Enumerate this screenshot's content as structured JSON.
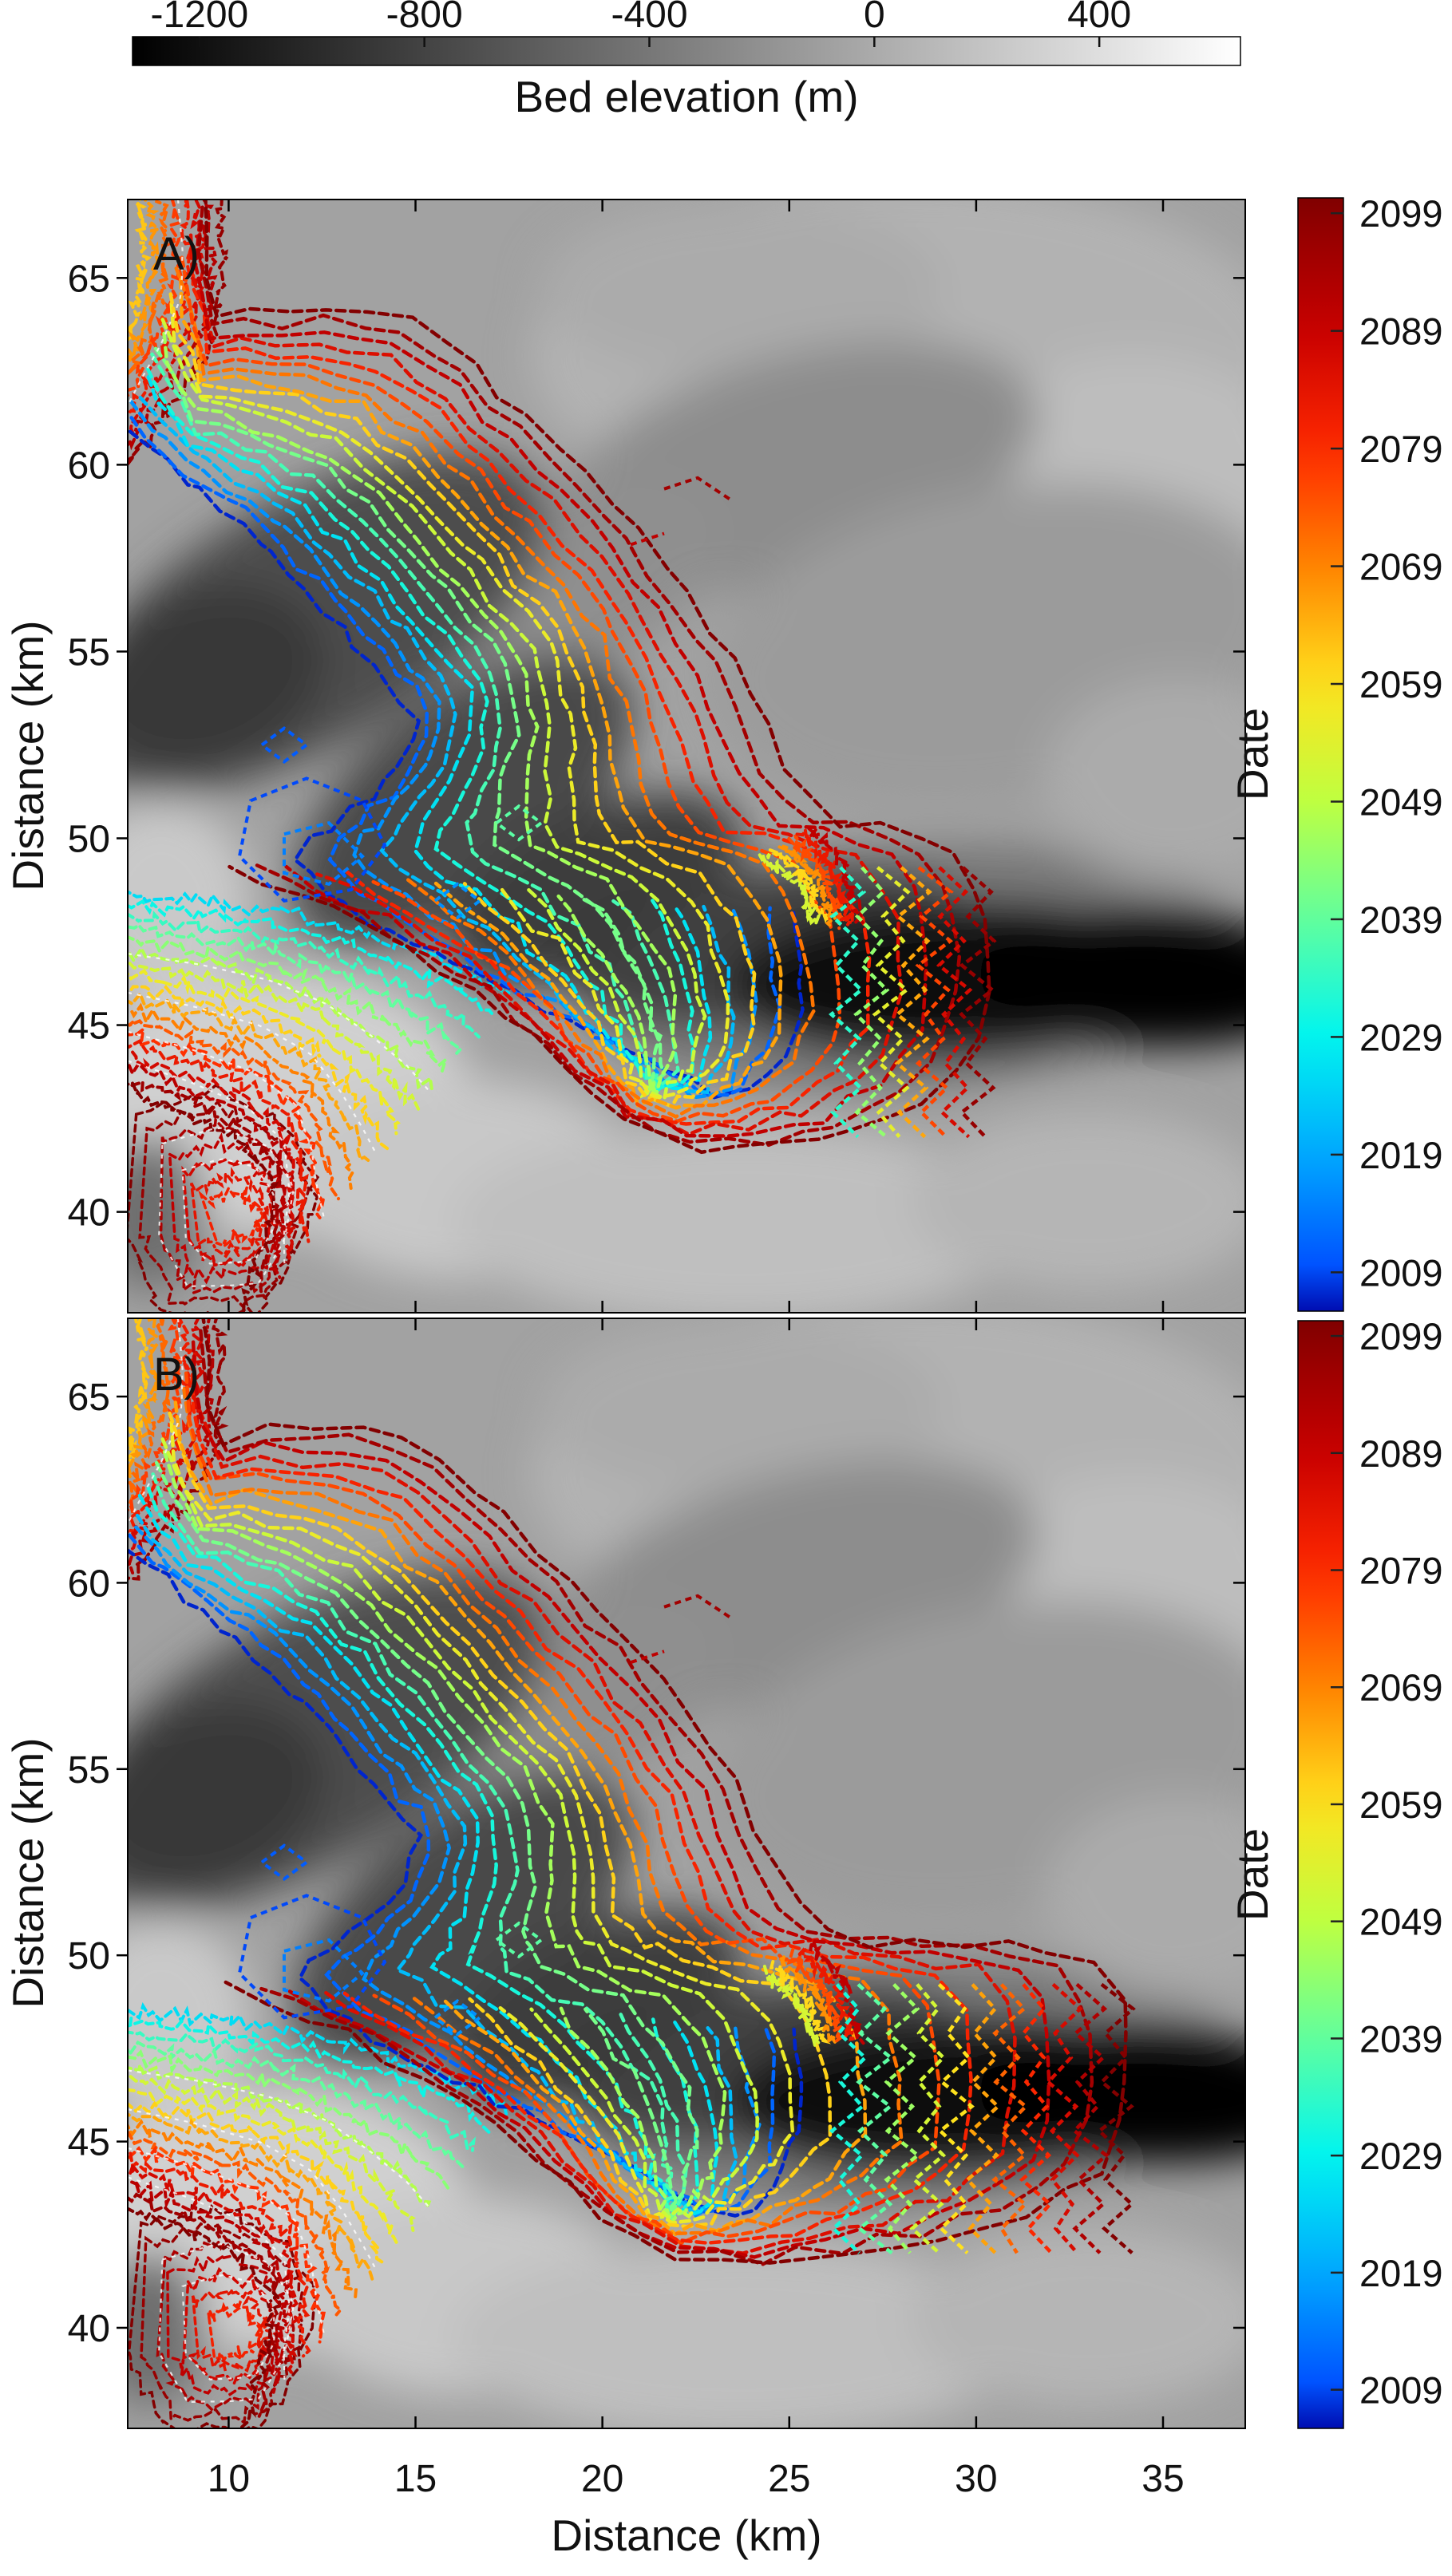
{
  "figure": {
    "background": "#ffffff"
  },
  "chart_data": {
    "type": "heatmap",
    "title": "",
    "description": "Two map panels (A, B) of modeled glacier terminus/margin contours for dates 2009-2099 (jet colormap) overlaid on a grayscale bed-elevation map; deep trough (dark, < -1000 m) runs along distance-y 45-50 km toward the east edge.",
    "x_label": "Distance (km)",
    "y_label": "Distance (km)",
    "x_range": [
      7.3,
      37.2
    ],
    "y_range": [
      37.3,
      67.1
    ],
    "x_ticks": [
      10,
      15,
      20,
      25,
      30,
      35
    ],
    "y_ticks": [
      65,
      60,
      55,
      50,
      45,
      40
    ],
    "grid": false,
    "bed_colorbar": {
      "label": "Bed elevation (m)",
      "colormap": "gray",
      "range": [
        -1319,
        651
      ],
      "ticks": [
        -1200,
        -800,
        -400,
        0,
        400
      ],
      "orientation": "horizontal",
      "position": "top"
    },
    "date_colorbar": {
      "label": "Date",
      "colormap": "jet",
      "tick_range": [
        2005.7,
        2100.3
      ],
      "ticks": [
        2099,
        2089,
        2079,
        2069,
        2059,
        2049,
        2039,
        2029,
        2019,
        2009
      ],
      "orientation": "vertical",
      "position": "right",
      "gradient_stops": [
        [
          2005,
          "#0000A0"
        ],
        [
          2009,
          "#004DFF"
        ],
        [
          2019,
          "#00A8FF"
        ],
        [
          2029,
          "#00F5F0"
        ],
        [
          2039,
          "#61FF9E"
        ],
        [
          2049,
          "#BFFF40"
        ],
        [
          2059,
          "#FFE21D"
        ],
        [
          2069,
          "#FF8400"
        ],
        [
          2079,
          "#FF2900"
        ],
        [
          2089,
          "#C80000"
        ],
        [
          2099,
          "#8B0000"
        ],
        [
          2101,
          "#7A0000"
        ]
      ]
    },
    "contour_year_start": 2005,
    "contour_year_end": 2100,
    "background_blobs": [
      {
        "cx": 70,
        "cy": 14,
        "rx": 34,
        "ry": 16,
        "rot": 0,
        "fill": "#b2b2b2",
        "op": 1
      },
      {
        "cx": 90,
        "cy": 26,
        "rx": 16,
        "ry": 12,
        "rot": 0,
        "fill": "#bdbdbd",
        "op": 1
      },
      {
        "cx": 55,
        "cy": 8,
        "rx": 18,
        "ry": 8,
        "rot": 0,
        "fill": "#ababab",
        "op": 1
      },
      {
        "cx": 60,
        "cy": 24,
        "rx": 22,
        "ry": 10,
        "rot": -15,
        "fill": "#8d8d8d",
        "op": 1
      },
      {
        "cx": 78,
        "cy": 40,
        "rx": 26,
        "ry": 14,
        "rot": -10,
        "fill": "#9b9b9b",
        "op": 1
      },
      {
        "cx": 40,
        "cy": 34,
        "rx": 14,
        "ry": 8,
        "rot": -25,
        "fill": "#8f8f8f",
        "op": 1
      },
      {
        "cx": 16,
        "cy": 38,
        "rx": 24,
        "ry": 11,
        "rot": -30,
        "fill": "#4e4e4e",
        "op": 1
      },
      {
        "cx": 7,
        "cy": 43,
        "rx": 11,
        "ry": 8,
        "rot": -20,
        "fill": "#383838",
        "op": 1
      },
      {
        "cx": 30,
        "cy": 54,
        "rx": 18,
        "ry": 9,
        "rot": -38,
        "fill": "#4a4a4a",
        "op": 1
      },
      {
        "cx": 42,
        "cy": 62,
        "rx": 14,
        "ry": 7,
        "rot": -25,
        "fill": "#3d3d3d",
        "op": 1
      },
      {
        "cx": 57,
        "cy": 67,
        "rx": 18,
        "ry": 6.5,
        "rot": -8,
        "fill": "#262626",
        "op": 1
      },
      {
        "cx": 70,
        "cy": 69,
        "rx": 30,
        "ry": 11,
        "rot": -4,
        "fill": "#555555",
        "op": 0.55
      },
      {
        "cx": 74,
        "cy": 70,
        "rx": 20,
        "ry": 6.5,
        "rot": -2,
        "fill": "#0e0e0e",
        "op": 1
      },
      {
        "cx": 92,
        "cy": 70,
        "rx": 16,
        "ry": 6,
        "rot": 2,
        "fill": "#000000",
        "op": 1
      },
      {
        "cx": 13,
        "cy": 81,
        "rx": 18,
        "ry": 12,
        "rot": 0,
        "fill": "#d0d0d0",
        "op": 1
      },
      {
        "cx": 30,
        "cy": 88,
        "rx": 16,
        "ry": 9,
        "rot": 0,
        "fill": "#c8c8c8",
        "op": 1
      },
      {
        "cx": 3,
        "cy": 63,
        "rx": 8,
        "ry": 9,
        "rot": 0,
        "fill": "#c9c9c9",
        "op": 1
      },
      {
        "cx": 2,
        "cy": 91,
        "rx": 5,
        "ry": 7,
        "rot": 0,
        "fill": "#6e6e6e",
        "op": 1
      },
      {
        "cx": 55,
        "cy": 92,
        "rx": 26,
        "ry": 9,
        "rot": 0,
        "fill": "#bfbfbf",
        "op": 1
      },
      {
        "cx": 86,
        "cy": 90,
        "rx": 16,
        "ry": 8,
        "rot": 0,
        "fill": "#b5b5b5",
        "op": 1
      },
      {
        "cx": 94,
        "cy": 52,
        "rx": 12,
        "ry": 9,
        "rot": 0,
        "fill": "#ababab",
        "op": 1
      }
    ],
    "families": {
      "main_inner": [
        [
          0,
          21
        ],
        [
          5,
          25
        ],
        [
          11,
          30
        ],
        [
          17,
          36
        ],
        [
          22,
          42
        ],
        [
          26,
          47
        ],
        [
          24,
          52
        ],
        [
          19,
          56
        ],
        [
          15,
          59
        ],
        [
          17,
          62
        ],
        [
          22,
          65
        ],
        [
          28,
          68
        ],
        [
          34,
          71
        ],
        [
          40,
          74
        ],
        [
          46,
          77
        ],
        [
          51,
          80
        ],
        [
          55,
          81
        ],
        [
          58,
          78
        ],
        [
          60,
          73
        ],
        [
          60,
          68
        ],
        [
          60,
          64
        ]
      ],
      "main_outer_A": [
        [
          7,
          0
        ],
        [
          7,
          6
        ],
        [
          8,
          11
        ],
        [
          13,
          10
        ],
        [
          20,
          10
        ],
        [
          26,
          11
        ],
        [
          31,
          15
        ],
        [
          37,
          21
        ],
        [
          43,
          27
        ],
        [
          49,
          34
        ],
        [
          54,
          41
        ],
        [
          57,
          47
        ],
        [
          60,
          53
        ],
        [
          64,
          56
        ],
        [
          69,
          56.5
        ],
        [
          73,
          57.5
        ],
        [
          75.5,
          60.5
        ],
        [
          77,
          64.5
        ],
        [
          77,
          70.5
        ],
        [
          75.5,
          76.5
        ],
        [
          71,
          81
        ],
        [
          64,
          84
        ],
        [
          57,
          85
        ],
        [
          50,
          85
        ],
        [
          44,
          82
        ],
        [
          38,
          77
        ],
        [
          31,
          71
        ],
        [
          25,
          67.5
        ],
        [
          18,
          63.5
        ],
        [
          12,
          61.5
        ],
        [
          9,
          59.5
        ]
      ],
      "main_outer_B": [
        [
          7,
          0
        ],
        [
          7,
          6
        ],
        [
          8,
          11
        ],
        [
          13,
          10
        ],
        [
          20,
          10
        ],
        [
          26,
          11
        ],
        [
          31,
          15
        ],
        [
          37,
          21
        ],
        [
          43,
          27
        ],
        [
          49,
          34
        ],
        [
          54,
          41
        ],
        [
          57,
          47
        ],
        [
          60,
          53
        ],
        [
          64,
          56
        ],
        [
          70,
          56
        ],
        [
          76,
          56.5
        ],
        [
          82,
          57
        ],
        [
          86.5,
          58
        ],
        [
          89,
          61
        ],
        [
          89.5,
          66
        ],
        [
          89,
          72
        ],
        [
          87,
          77
        ],
        [
          82,
          80
        ],
        [
          75,
          82.5
        ],
        [
          67,
          84
        ],
        [
          59,
          85
        ],
        [
          51,
          85
        ],
        [
          44,
          82
        ],
        [
          38,
          77
        ],
        [
          31,
          71
        ],
        [
          25,
          67.5
        ],
        [
          18,
          63.5
        ],
        [
          12,
          61.5
        ],
        [
          9,
          59.5
        ]
      ],
      "main_count": 20,
      "main_t0": 0.02,
      "main_t1": 1.0,
      "sw_fan": {
        "inner": [
          [
            0,
            62.5
          ],
          [
            7,
            63
          ],
          [
            14,
            64
          ],
          [
            20,
            65.5
          ],
          [
            26,
            67.5
          ],
          [
            31,
            69.5
          ],
          [
            34,
            71.5
          ]
        ],
        "outer": [
          [
            0,
            80
          ],
          [
            5,
            82
          ],
          [
            10,
            84.5
          ],
          [
            13,
            88
          ],
          [
            12.5,
            93
          ],
          [
            11,
            97
          ],
          [
            10.5,
            100
          ]
        ],
        "count": 18,
        "t0": 0.22,
        "t1": 1.0
      },
      "corner_fan": {
        "inner": [
          [
            7,
            90
          ],
          [
            10,
            89
          ],
          [
            12,
            91
          ],
          [
            11,
            93
          ],
          [
            8,
            93.5
          ]
        ],
        "outer": [
          [
            1,
            82
          ],
          [
            8,
            80
          ],
          [
            14,
            83
          ],
          [
            17,
            88
          ],
          [
            15,
            95
          ],
          [
            12,
            100
          ],
          [
            3,
            100
          ],
          [
            0,
            93
          ]
        ],
        "count": 7,
        "t0": 0.8,
        "t1": 1.0,
        "closed": true
      },
      "tl_fan": {
        "inner": [
          [
            1,
            0
          ],
          [
            1.5,
            5
          ],
          [
            1,
            9
          ],
          [
            0,
            13
          ]
        ],
        "outer": [
          [
            8,
            0
          ],
          [
            8.5,
            6
          ],
          [
            8,
            12
          ],
          [
            5,
            17
          ],
          [
            2,
            21
          ],
          [
            0,
            24
          ]
        ],
        "count": 8,
        "t0": 0.6,
        "t1": 0.97
      },
      "hook_fan": {
        "inner": [
          [
            57,
            59
          ],
          [
            60,
            61.5
          ],
          [
            61.5,
            65
          ]
        ],
        "outer": [
          [
            61,
            56.5
          ],
          [
            64,
            59.5
          ],
          [
            65.5,
            65
          ]
        ],
        "count": 6,
        "t0": 0.5,
        "t1": 0.9
      },
      "blue_blobs": [
        {
          "t": 0.04,
          "pts": [
            [
              11,
              54
            ],
            [
              16,
              52
            ],
            [
              21,
              54
            ],
            [
              23,
              58
            ],
            [
              20,
              62
            ],
            [
              14,
              63
            ],
            [
              10,
              59
            ]
          ]
        },
        {
          "t": 0.1,
          "pts": [
            [
              14,
              57
            ],
            [
              18,
              56
            ],
            [
              21,
              59
            ],
            [
              18,
              61.5
            ],
            [
              14,
              60.5
            ]
          ]
        },
        {
          "t": 0.06,
          "pts": [
            [
              12,
              49
            ],
            [
              14,
              47.5
            ],
            [
              16,
              49
            ],
            [
              14,
              50.5
            ]
          ]
        },
        {
          "t": 0.12,
          "pts": [
            [
              27.5,
              63
            ],
            [
              29.5,
              61.5
            ],
            [
              31.5,
              63
            ],
            [
              29.5,
              64.5
            ]
          ]
        },
        {
          "t": 0.35,
          "pts": [
            [
              33,
              56
            ],
            [
              35,
              54.5
            ],
            [
              37,
              56
            ],
            [
              35,
              57.5
            ]
          ]
        }
      ],
      "stray": [
        {
          "t": 0.95,
          "pts": [
            [
              48,
              26
            ],
            [
              51,
              25
            ],
            [
              54,
              27
            ]
          ]
        },
        {
          "t": 0.9,
          "pts": [
            [
              45,
              31
            ],
            [
              48,
              30
            ]
          ]
        }
      ]
    },
    "panels": [
      {
        "label": "A)",
        "channel_cluster": {
          "x0": 64.5,
          "x1": 76,
          "count": 7,
          "t0": 0.3,
          "t1": 0.97,
          "y0": 60,
          "y1": 84.5
        }
      },
      {
        "label": "B)",
        "channel_cluster": {
          "x0": 64.5,
          "x1": 88.5,
          "count": 11,
          "t0": 0.28,
          "t1": 1.0,
          "y0": 60,
          "y1": 84.5
        }
      }
    ],
    "white_dash_overlays": {
      "sw_fan": [
        0.3,
        0.5,
        0.7,
        0.85
      ],
      "tl_fan": [
        0.5
      ],
      "corner_fan": [
        0.35,
        0.65
      ]
    }
  }
}
